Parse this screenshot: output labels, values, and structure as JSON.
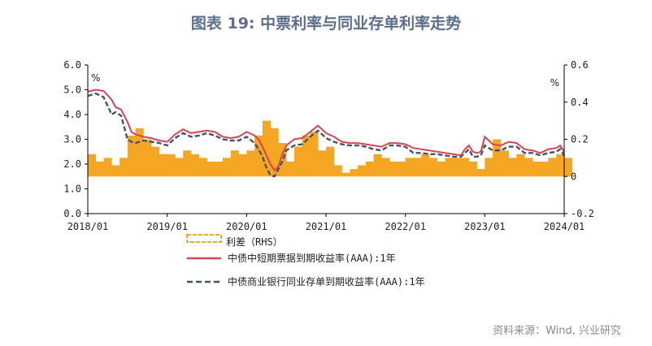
{
  "title": "图表 19: 中票利率与同业存单利率走势",
  "source": "资料来源：Wind, 兴业研究",
  "chart_data": {
    "type": "line",
    "title": "图表 19: 中票利率与同业存单利率走势",
    "left_axis": {
      "unit": "%",
      "range": [
        0,
        6
      ],
      "ticks": [
        "6.0",
        "5.0",
        "4.0",
        "3.0",
        "2.0",
        "1.0",
        "0.0"
      ]
    },
    "right_axis": {
      "unit": "%",
      "range": [
        -0.2,
        0.6
      ],
      "ticks": [
        "0.6",
        "0.4",
        "0.2",
        "0",
        "-0.2"
      ]
    },
    "x_ticks": [
      "2018/01",
      "2019/01",
      "2020/01",
      "2021/01",
      "2022/01",
      "2023/01",
      "2024/01"
    ],
    "grid": false,
    "legend_position": "bottom",
    "colors": {
      "spread": "#f5a623",
      "mtn": "#d64550",
      "ncd": "#44546a"
    },
    "series": [
      {
        "name": "利差（RHS）",
        "axis": "right",
        "style": "bar",
        "x": [
          2018.0,
          2018.1,
          2018.2,
          2018.3,
          2018.4,
          2018.5,
          2018.6,
          2018.7,
          2018.8,
          2018.9,
          2019.0,
          2019.1,
          2019.2,
          2019.3,
          2019.4,
          2019.5,
          2019.6,
          2019.7,
          2019.8,
          2019.9,
          2020.0,
          2020.1,
          2020.2,
          2020.3,
          2020.4,
          2020.5,
          2020.6,
          2020.7,
          2020.8,
          2020.9,
          2021.0,
          2021.1,
          2021.2,
          2021.3,
          2021.4,
          2021.5,
          2021.6,
          2021.7,
          2021.8,
          2021.9,
          2022.0,
          2022.1,
          2022.2,
          2022.3,
          2022.4,
          2022.5,
          2022.6,
          2022.7,
          2022.8,
          2022.9,
          2023.0,
          2023.1,
          2023.2,
          2023.3,
          2023.4,
          2023.5,
          2023.6,
          2023.7,
          2023.8,
          2023.9,
          2024.0
        ],
        "values": [
          0.12,
          0.08,
          0.1,
          0.06,
          0.1,
          0.22,
          0.26,
          0.2,
          0.16,
          0.12,
          0.12,
          0.1,
          0.14,
          0.12,
          0.1,
          0.08,
          0.08,
          0.1,
          0.14,
          0.12,
          0.14,
          0.22,
          0.3,
          0.26,
          0.18,
          0.08,
          0.16,
          0.22,
          0.24,
          0.14,
          0.16,
          0.06,
          0.02,
          0.04,
          0.06,
          0.08,
          0.12,
          0.1,
          0.08,
          0.08,
          0.1,
          0.1,
          0.12,
          0.1,
          0.08,
          0.1,
          0.1,
          0.1,
          0.08,
          0.04,
          0.1,
          0.2,
          0.14,
          0.1,
          0.12,
          0.1,
          0.08,
          0.08,
          0.1,
          0.12,
          0.1
        ]
      },
      {
        "name": "中债中短期票据到期收益率(AAA):1年",
        "axis": "left",
        "style": "line",
        "x": [
          2018.0,
          2018.1,
          2018.2,
          2018.3,
          2018.35,
          2018.42,
          2018.5,
          2018.55,
          2018.6,
          2018.7,
          2018.8,
          2018.9,
          2019.0,
          2019.1,
          2019.2,
          2019.3,
          2019.4,
          2019.5,
          2019.6,
          2019.7,
          2019.8,
          2019.9,
          2020.0,
          2020.1,
          2020.15,
          2020.2,
          2020.25,
          2020.3,
          2020.35,
          2020.4,
          2020.45,
          2020.5,
          2020.6,
          2020.7,
          2020.8,
          2020.9,
          2021.0,
          2021.1,
          2021.2,
          2021.3,
          2021.4,
          2021.5,
          2021.6,
          2021.7,
          2021.8,
          2021.9,
          2022.0,
          2022.1,
          2022.2,
          2022.3,
          2022.4,
          2022.5,
          2022.6,
          2022.7,
          2022.75,
          2022.8,
          2022.85,
          2022.9,
          2022.95,
          2023.0,
          2023.1,
          2023.2,
          2023.3,
          2023.4,
          2023.5,
          2023.6,
          2023.7,
          2023.8,
          2023.9,
          2023.95,
          2024.0
        ],
        "values": [
          4.92,
          5.0,
          4.95,
          4.6,
          4.3,
          4.2,
          3.7,
          3.3,
          3.2,
          3.1,
          3.05,
          2.95,
          2.9,
          3.2,
          3.4,
          3.25,
          3.3,
          3.35,
          3.3,
          3.1,
          3.05,
          3.1,
          3.3,
          3.15,
          3.0,
          2.7,
          2.35,
          2.0,
          1.75,
          1.9,
          2.4,
          2.75,
          3.0,
          3.05,
          3.3,
          3.55,
          3.25,
          3.1,
          2.9,
          2.85,
          2.85,
          2.8,
          2.75,
          2.7,
          2.85,
          2.85,
          2.8,
          2.65,
          2.6,
          2.55,
          2.5,
          2.45,
          2.4,
          2.35,
          2.6,
          2.75,
          2.5,
          2.45,
          2.5,
          3.1,
          2.8,
          2.75,
          2.9,
          2.85,
          2.6,
          2.55,
          2.45,
          2.6,
          2.65,
          2.75,
          2.5
        ]
      },
      {
        "name": "中债商业银行同业存单到期收益率(AAA):1年",
        "axis": "left",
        "style": "dashed",
        "x": [
          2018.0,
          2018.1,
          2018.2,
          2018.3,
          2018.35,
          2018.42,
          2018.5,
          2018.55,
          2018.6,
          2018.7,
          2018.8,
          2018.9,
          2019.0,
          2019.1,
          2019.2,
          2019.3,
          2019.4,
          2019.5,
          2019.6,
          2019.7,
          2019.8,
          2019.9,
          2020.0,
          2020.1,
          2020.15,
          2020.2,
          2020.25,
          2020.3,
          2020.35,
          2020.4,
          2020.45,
          2020.5,
          2020.6,
          2020.7,
          2020.8,
          2020.9,
          2021.0,
          2021.1,
          2021.2,
          2021.3,
          2021.4,
          2021.5,
          2021.6,
          2021.7,
          2021.8,
          2021.9,
          2022.0,
          2022.1,
          2022.2,
          2022.3,
          2022.4,
          2022.5,
          2022.6,
          2022.7,
          2022.75,
          2022.8,
          2022.85,
          2022.9,
          2022.95,
          2023.0,
          2023.1,
          2023.2,
          2023.3,
          2023.4,
          2023.5,
          2023.6,
          2023.7,
          2023.8,
          2023.9,
          2023.95,
          2024.0
        ],
        "values": [
          4.75,
          4.85,
          4.7,
          4.0,
          4.1,
          3.95,
          3.0,
          2.9,
          2.85,
          2.95,
          2.9,
          2.85,
          2.75,
          3.05,
          3.25,
          3.1,
          3.15,
          3.25,
          3.15,
          3.0,
          2.95,
          2.95,
          3.1,
          2.85,
          2.6,
          2.3,
          1.85,
          1.55,
          1.5,
          1.8,
          2.1,
          2.55,
          2.75,
          2.8,
          3.1,
          3.35,
          3.05,
          2.9,
          2.8,
          2.75,
          2.75,
          2.7,
          2.6,
          2.55,
          2.75,
          2.75,
          2.7,
          2.45,
          2.45,
          2.4,
          2.4,
          2.35,
          2.3,
          2.3,
          2.45,
          2.6,
          2.3,
          2.3,
          2.35,
          2.75,
          2.55,
          2.55,
          2.7,
          2.7,
          2.45,
          2.45,
          2.35,
          2.45,
          2.5,
          2.6,
          2.35
        ]
      }
    ]
  }
}
